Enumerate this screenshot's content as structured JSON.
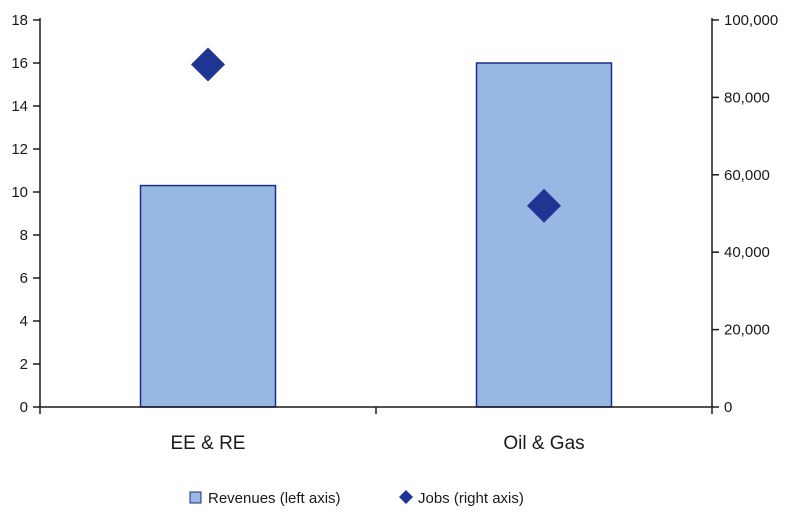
{
  "chart_data": {
    "type": "bar",
    "categories": [
      "EE & RE",
      "Oil & Gas"
    ],
    "series": [
      {
        "name": "Revenues (left axis)",
        "type": "bar",
        "axis": "left",
        "values": [
          10.3,
          16.0
        ],
        "color": "#96b8e3",
        "stroke": "#1f2a8a"
      },
      {
        "name": "Jobs (right axis)",
        "type": "scatter",
        "marker": "diamond",
        "axis": "right",
        "values": [
          88500,
          52000
        ],
        "color": "#1f3594"
      }
    ],
    "left_axis": {
      "ylim": [
        0,
        18
      ],
      "ticks": [
        0,
        2,
        4,
        6,
        8,
        10,
        12,
        14,
        16,
        18
      ],
      "tick_labels": [
        "0",
        "2",
        "4",
        "6",
        "8",
        "10",
        "12",
        "14",
        "16",
        "18"
      ]
    },
    "right_axis": {
      "ylim": [
        0,
        100000
      ],
      "ticks": [
        0,
        20000,
        40000,
        60000,
        80000,
        100000
      ],
      "tick_labels": [
        "0",
        "20,000",
        "40,000",
        "60,000",
        "80,000",
        "100,000"
      ]
    },
    "title": "",
    "xlabel": "",
    "ylabel": "",
    "legend": {
      "position": "bottom",
      "entries": [
        "Revenues (left axis)",
        "Jobs (right axis)"
      ]
    },
    "grid": false
  }
}
